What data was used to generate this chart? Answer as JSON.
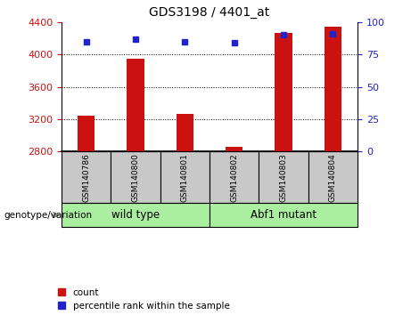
{
  "title": "GDS3198 / 4401_at",
  "samples": [
    "GSM140786",
    "GSM140800",
    "GSM140801",
    "GSM140802",
    "GSM140803",
    "GSM140804"
  ],
  "counts": [
    3240,
    3950,
    3270,
    2860,
    4270,
    4340
  ],
  "percentiles": [
    85,
    87,
    85,
    84,
    90,
    91
  ],
  "ylim_left": [
    2800,
    4400
  ],
  "yticks_left": [
    2800,
    3200,
    3600,
    4000,
    4400
  ],
  "ylim_right": [
    0,
    100
  ],
  "yticks_right": [
    0,
    25,
    50,
    75,
    100
  ],
  "bar_color": "#cc1111",
  "dot_color": "#2222cc",
  "bg_color": "#ffffff",
  "wild_type_label": "wild type",
  "abf1_mutant_label": "Abf1 mutant",
  "genotype_label": "genotype/variation",
  "legend_count": "count",
  "legend_percentile": "percentile rank within the sample",
  "left_label_color": "#cc1111",
  "right_label_color": "#2222cc",
  "group_bg_color": "#aaeea0",
  "tick_bg_color": "#c8c8c8",
  "bar_width": 0.35,
  "grid_yticks": [
    3200,
    3600,
    4000
  ]
}
